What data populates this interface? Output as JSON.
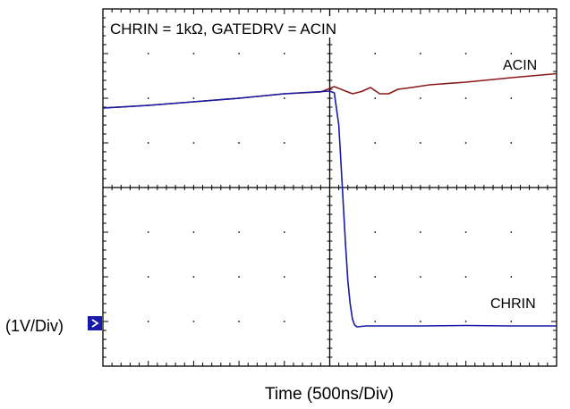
{
  "chart_data": {
    "type": "line",
    "title": "CHRIN = 1kΩ, GATEDRV = ACIN",
    "xlabel": "Time  (500ns/Div)",
    "ylabel": "(1V/Div)",
    "x_divisions": 10,
    "y_divisions": 8,
    "xlim": [
      0,
      10
    ],
    "ylim": [
      0,
      8
    ],
    "grid": true,
    "ground_marker_level_div": 1,
    "series": [
      {
        "name": "ACIN",
        "color": "#8b1a1a",
        "x": [
          0,
          1,
          2,
          3,
          4,
          4.8,
          5.1,
          5.3,
          5.5,
          5.7,
          5.9,
          6.1,
          6.3,
          6.5,
          6.8,
          7.2,
          8,
          9,
          10
        ],
        "y": [
          5.78,
          5.84,
          5.92,
          6.0,
          6.1,
          6.14,
          6.26,
          6.18,
          6.1,
          6.15,
          6.24,
          6.1,
          6.1,
          6.2,
          6.24,
          6.3,
          6.36,
          6.46,
          6.55
        ]
      },
      {
        "name": "CHRIN",
        "color": "#1a1aa8",
        "x": [
          0,
          1,
          2,
          3,
          4,
          5,
          5.1,
          5.2,
          5.25,
          5.3,
          5.35,
          5.4,
          5.45,
          5.5,
          5.55,
          5.6,
          5.8,
          6,
          7,
          8,
          9,
          10
        ],
        "y": [
          5.78,
          5.84,
          5.92,
          6.0,
          6.1,
          6.16,
          6.12,
          5.4,
          4.5,
          3.6,
          2.7,
          1.9,
          1.4,
          1.05,
          0.92,
          0.88,
          0.9,
          0.9,
          0.9,
          0.91,
          0.9,
          0.9
        ]
      }
    ]
  }
}
